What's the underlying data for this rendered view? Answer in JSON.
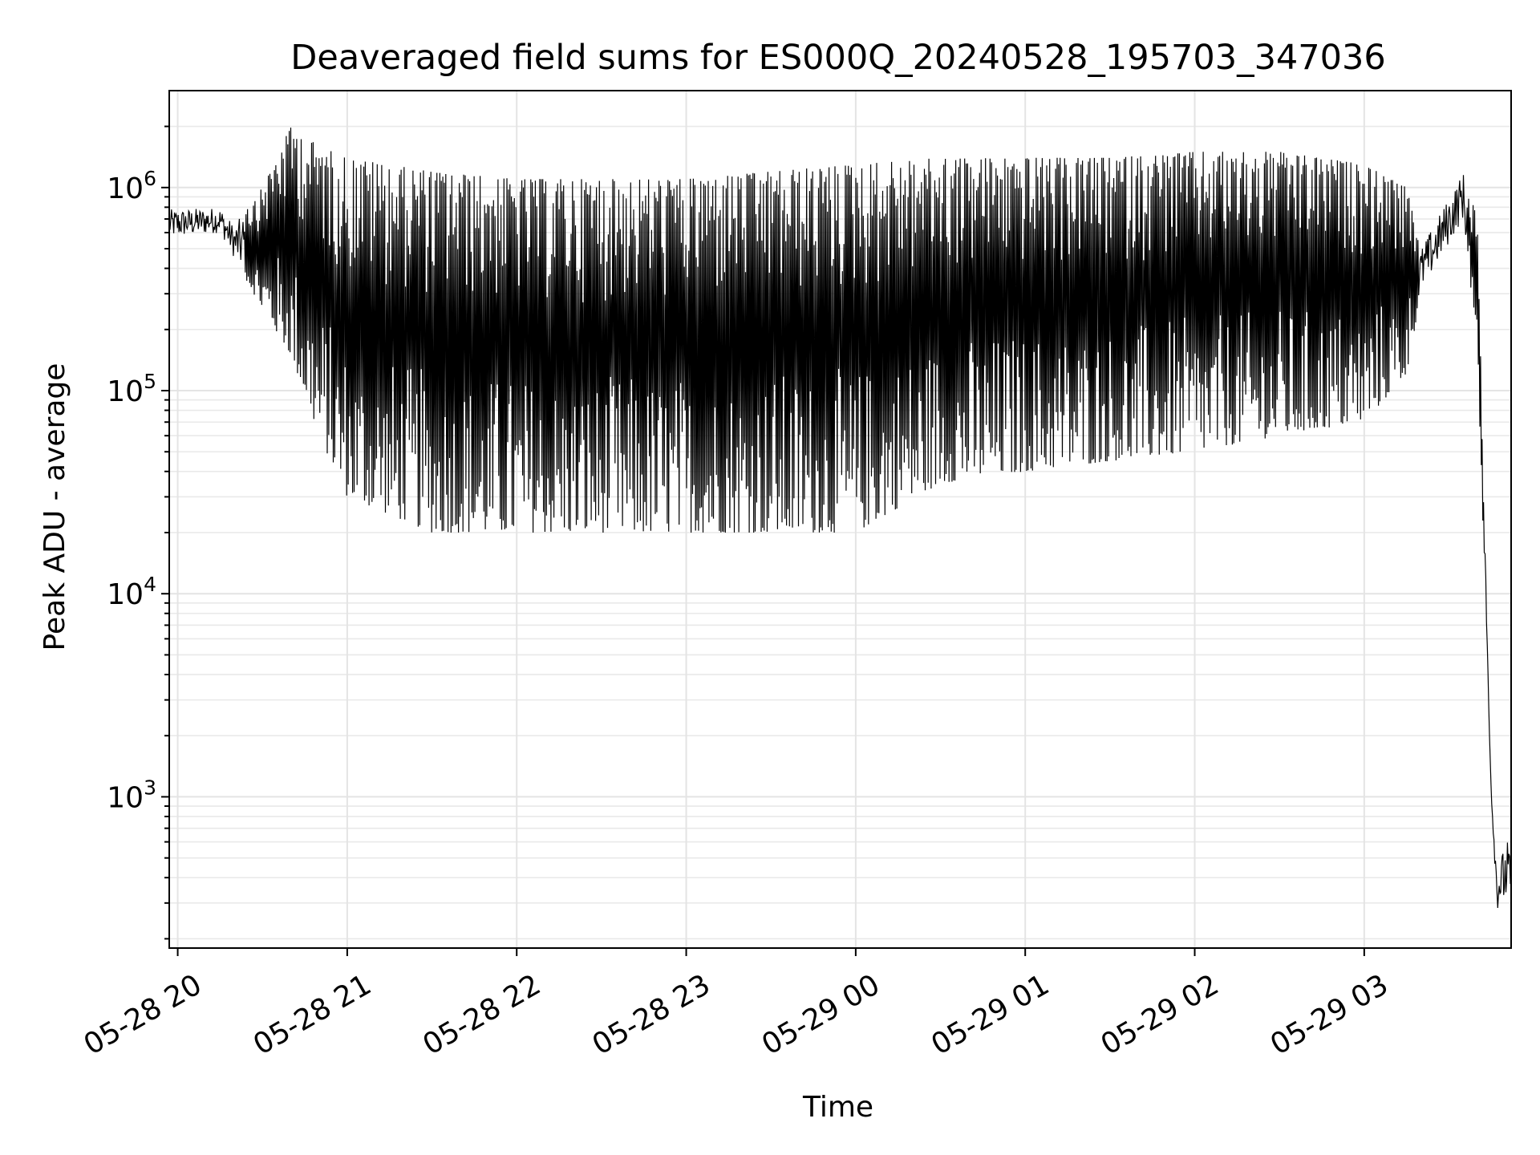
{
  "chart_data": {
    "type": "line",
    "title": "Deaveraged field sums for ES000Q_20240528_195703_347036",
    "xlabel": "Time",
    "ylabel": "Peak ADU - average",
    "yscale": "log",
    "ylim": [
      180,
      3000000
    ],
    "xlim": [
      "2024-05-28 19:57",
      "2024-05-29 03:52"
    ],
    "grid": true,
    "x_ticks": [
      {
        "t": "2024-05-28 20:00",
        "label": "05-28 20"
      },
      {
        "t": "2024-05-28 21:00",
        "label": "05-28 21"
      },
      {
        "t": "2024-05-28 22:00",
        "label": "05-28 22"
      },
      {
        "t": "2024-05-28 23:00",
        "label": "05-28 23"
      },
      {
        "t": "2024-05-29 00:00",
        "label": "05-29 00"
      },
      {
        "t": "2024-05-29 01:00",
        "label": "05-29 01"
      },
      {
        "t": "2024-05-29 02:00",
        "label": "05-29 02"
      },
      {
        "t": "2024-05-29 03:00",
        "label": "05-29 03"
      }
    ],
    "y_ticks": [
      {
        "value": 1000,
        "base": "10",
        "exp": "3"
      },
      {
        "value": 10000,
        "base": "10",
        "exp": "4"
      },
      {
        "value": 100000,
        "base": "10",
        "exp": "5"
      },
      {
        "value": 1000000,
        "base": "10",
        "exp": "6"
      }
    ],
    "series": [
      {
        "color": "#000000",
        "envelope": [
          {
            "t": "2024-05-28 19:57",
            "low": 560000,
            "high": 780000
          },
          {
            "t": "2024-05-28 20:15",
            "low": 600000,
            "high": 800000
          },
          {
            "t": "2024-05-28 20:20",
            "low": 450000,
            "high": 650000
          },
          {
            "t": "2024-05-28 20:30",
            "low": 250000,
            "high": 1000000
          },
          {
            "t": "2024-05-28 20:40",
            "low": 150000,
            "high": 2000000
          },
          {
            "t": "2024-05-28 20:50",
            "low": 60000,
            "high": 1600000
          },
          {
            "t": "2024-05-28 21:00",
            "low": 30000,
            "high": 1400000
          },
          {
            "t": "2024-05-28 21:30",
            "low": 20000,
            "high": 1200000
          },
          {
            "t": "2024-05-28 22:00",
            "low": 20000,
            "high": 1100000
          },
          {
            "t": "2024-05-28 22:30",
            "low": 20000,
            "high": 1100000
          },
          {
            "t": "2024-05-28 23:00",
            "low": 20000,
            "high": 1100000
          },
          {
            "t": "2024-05-28 23:30",
            "low": 20000,
            "high": 1200000
          },
          {
            "t": "2024-05-29 00:00",
            "low": 20000,
            "high": 1300000
          },
          {
            "t": "2024-05-29 00:30",
            "low": 35000,
            "high": 1400000
          },
          {
            "t": "2024-05-29 01:00",
            "low": 40000,
            "high": 1400000
          },
          {
            "t": "2024-05-29 01:30",
            "low": 45000,
            "high": 1400000
          },
          {
            "t": "2024-05-29 02:00",
            "low": 50000,
            "high": 1500000
          },
          {
            "t": "2024-05-29 02:30",
            "low": 60000,
            "high": 1500000
          },
          {
            "t": "2024-05-29 03:00",
            "low": 70000,
            "high": 1300000
          },
          {
            "t": "2024-05-29 03:15",
            "low": 120000,
            "high": 1000000
          },
          {
            "t": "2024-05-29 03:20",
            "low": 300000,
            "high": 500000
          },
          {
            "t": "2024-05-29 03:35",
            "low": 700000,
            "high": 1200000
          },
          {
            "t": "2024-05-29 03:40",
            "low": 170000,
            "high": 700000
          },
          {
            "t": "2024-05-29 03:45",
            "low": 1000,
            "high": 1000
          },
          {
            "t": "2024-05-29 03:47",
            "low": 280,
            "high": 450
          },
          {
            "t": "2024-05-29 03:52",
            "low": 300,
            "high": 700
          }
        ]
      }
    ]
  }
}
